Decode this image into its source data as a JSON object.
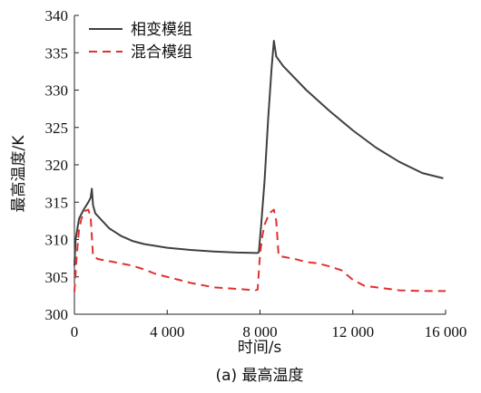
{
  "chart_data": {
    "type": "line",
    "title": "",
    "caption": "(a) 最高温度",
    "xlabel": "时间/s",
    "ylabel": "最高温度/K",
    "xlim": [
      0,
      16000
    ],
    "ylim": [
      300,
      340
    ],
    "xticks": [
      0,
      4000,
      8000,
      12000,
      16000
    ],
    "xtick_labels": [
      "0",
      "4 000",
      "8 000",
      "12 000",
      "16 000"
    ],
    "yticks": [
      300,
      305,
      310,
      315,
      320,
      325,
      330,
      335,
      340
    ],
    "ytick_labels": [
      "300",
      "305",
      "310",
      "315",
      "320",
      "325",
      "330",
      "335",
      "340"
    ],
    "grid": false,
    "legend_position": "top-left",
    "series": [
      {
        "name": "相变模组",
        "style": "solid",
        "color": "#404040",
        "points": [
          [
            0,
            306.5
          ],
          [
            50,
            310.0
          ],
          [
            200,
            312.8
          ],
          [
            400,
            314.0
          ],
          [
            600,
            315.0
          ],
          [
            700,
            315.6
          ],
          [
            750,
            316.8
          ],
          [
            800,
            314.6
          ],
          [
            900,
            313.5
          ],
          [
            1200,
            312.5
          ],
          [
            1500,
            311.5
          ],
          [
            2000,
            310.5
          ],
          [
            2500,
            309.8
          ],
          [
            3000,
            309.4
          ],
          [
            4000,
            308.9
          ],
          [
            5000,
            308.6
          ],
          [
            6000,
            308.4
          ],
          [
            7000,
            308.25
          ],
          [
            7900,
            308.2
          ],
          [
            7950,
            308.3
          ],
          [
            8050,
            312.0
          ],
          [
            8200,
            318.0
          ],
          [
            8350,
            326.0
          ],
          [
            8500,
            333.0
          ],
          [
            8600,
            336.6
          ],
          [
            8700,
            334.5
          ],
          [
            9000,
            333.2
          ],
          [
            10000,
            330.0
          ],
          [
            11000,
            327.2
          ],
          [
            12000,
            324.6
          ],
          [
            13000,
            322.3
          ],
          [
            14000,
            320.4
          ],
          [
            15000,
            318.9
          ],
          [
            15900,
            318.2
          ]
        ]
      },
      {
        "name": "混合模组",
        "style": "dashed",
        "color": "#e03030",
        "points": [
          [
            0,
            303.0
          ],
          [
            100,
            308.0
          ],
          [
            200,
            311.3
          ],
          [
            300,
            312.8
          ],
          [
            450,
            313.8
          ],
          [
            600,
            314.0
          ],
          [
            700,
            313.0
          ],
          [
            800,
            307.8
          ],
          [
            1000,
            307.4
          ],
          [
            1500,
            307.1
          ],
          [
            2000,
            306.8
          ],
          [
            2500,
            306.5
          ],
          [
            3000,
            306.0
          ],
          [
            3500,
            305.4
          ],
          [
            4000,
            305.0
          ],
          [
            4500,
            304.6
          ],
          [
            5000,
            304.2
          ],
          [
            5500,
            303.9
          ],
          [
            6000,
            303.6
          ],
          [
            7000,
            303.4
          ],
          [
            7800,
            303.2
          ],
          [
            7900,
            303.3
          ],
          [
            8000,
            308.0
          ],
          [
            8100,
            310.5
          ],
          [
            8200,
            312.0
          ],
          [
            8400,
            313.5
          ],
          [
            8600,
            314.0
          ],
          [
            8700,
            312.5
          ],
          [
            8800,
            307.8
          ],
          [
            9500,
            307.4
          ],
          [
            10000,
            307.0
          ],
          [
            10500,
            306.8
          ],
          [
            11000,
            306.4
          ],
          [
            11500,
            305.9
          ],
          [
            12000,
            304.6
          ],
          [
            12500,
            303.8
          ],
          [
            13000,
            303.6
          ],
          [
            14000,
            303.2
          ],
          [
            15000,
            303.1
          ],
          [
            16000,
            303.1
          ]
        ]
      }
    ]
  }
}
